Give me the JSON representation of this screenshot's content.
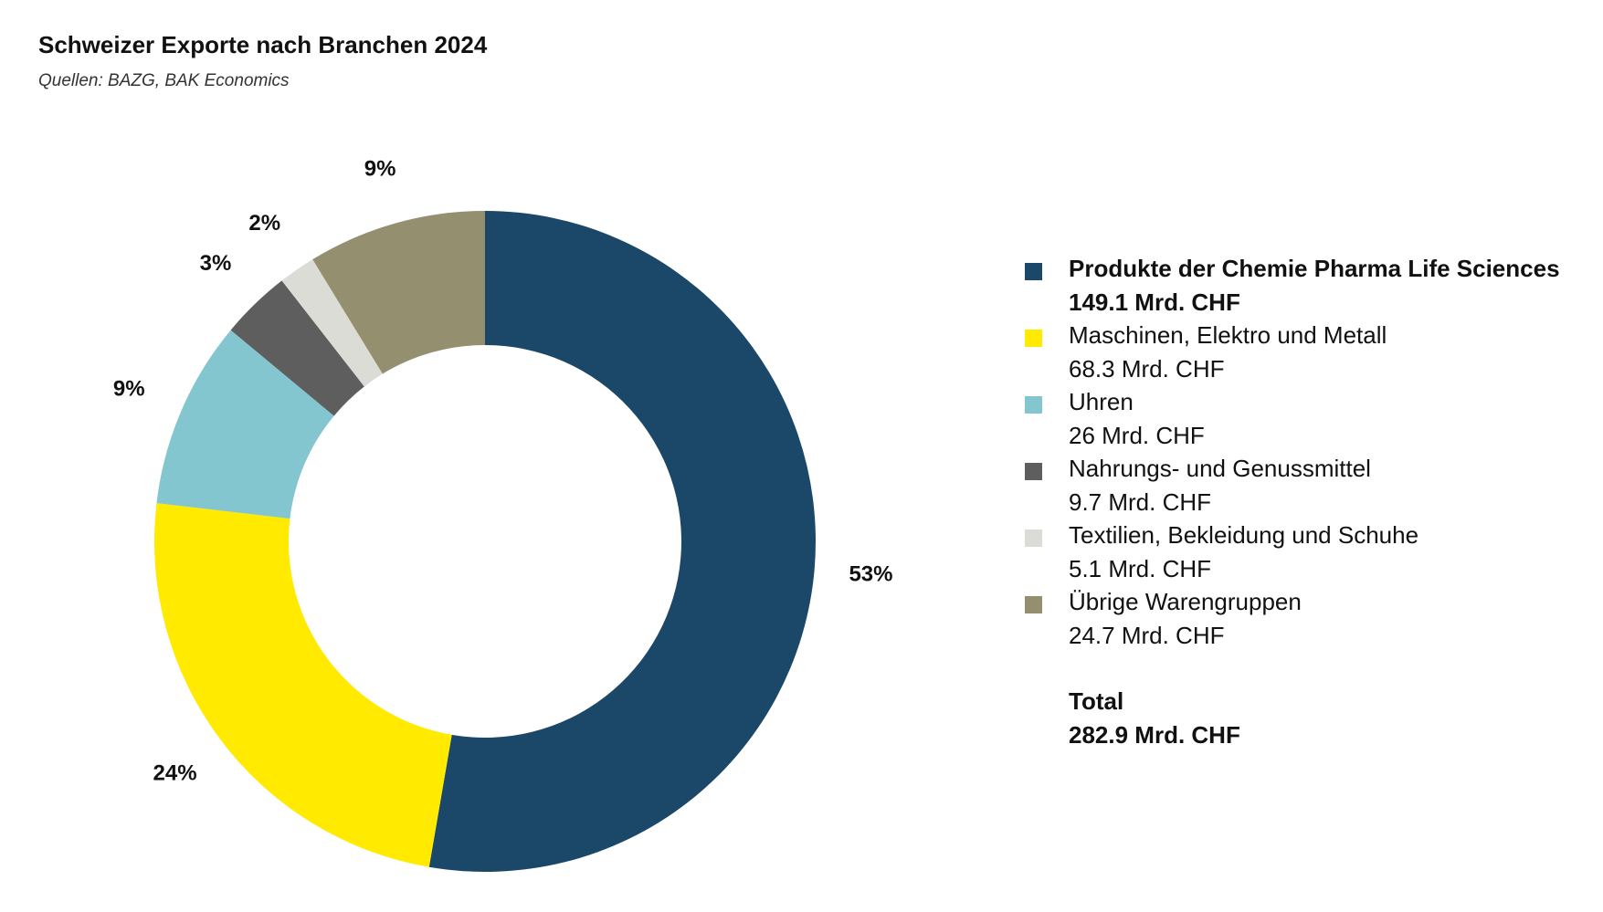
{
  "header": {
    "title": "Schweizer Exporte nach Branchen 2024",
    "subtitle": "Quellen: BAZG, BAK Economics"
  },
  "chart_data": {
    "type": "pie",
    "variant": "donut",
    "title": "Schweizer Exporte nach Branchen 2024",
    "subtitle": "Quellen: BAZG, BAK Economics",
    "unit": "Mrd. CHF",
    "series": [
      {
        "name": "Produkte der Chemie Pharma Life Sciences",
        "value": 149.1,
        "value_label": "149.1 Mrd. CHF",
        "percent_label": "53%",
        "color": "#1b4769"
      },
      {
        "name": "Maschinen, Elektro und Metall",
        "value": 68.3,
        "value_label": "68.3 Mrd. CHF",
        "percent_label": "24%",
        "color": "#ffea00"
      },
      {
        "name": "Uhren",
        "value": 26,
        "value_label": "26 Mrd. CHF",
        "percent_label": "9%",
        "color": "#83c6cf"
      },
      {
        "name": "Nahrungs- und Genussmittel",
        "value": 9.7,
        "value_label": "9.7 Mrd. CHF",
        "percent_label": "3%",
        "color": "#5e5e5e"
      },
      {
        "name": "Textilien, Bekleidung und Schuhe",
        "value": 5.1,
        "value_label": "5.1 Mrd. CHF",
        "percent_label": "2%",
        "color": "#dcdcd7"
      },
      {
        "name": "Übrige Warengruppen",
        "value": 24.7,
        "value_label": "24.7 Mrd. CHF",
        "percent_label": "9%",
        "color": "#948f6f"
      }
    ],
    "total": {
      "label": "Total",
      "value": 282.9,
      "value_label": "282.9 Mrd. CHF"
    },
    "legend_position": "right"
  }
}
